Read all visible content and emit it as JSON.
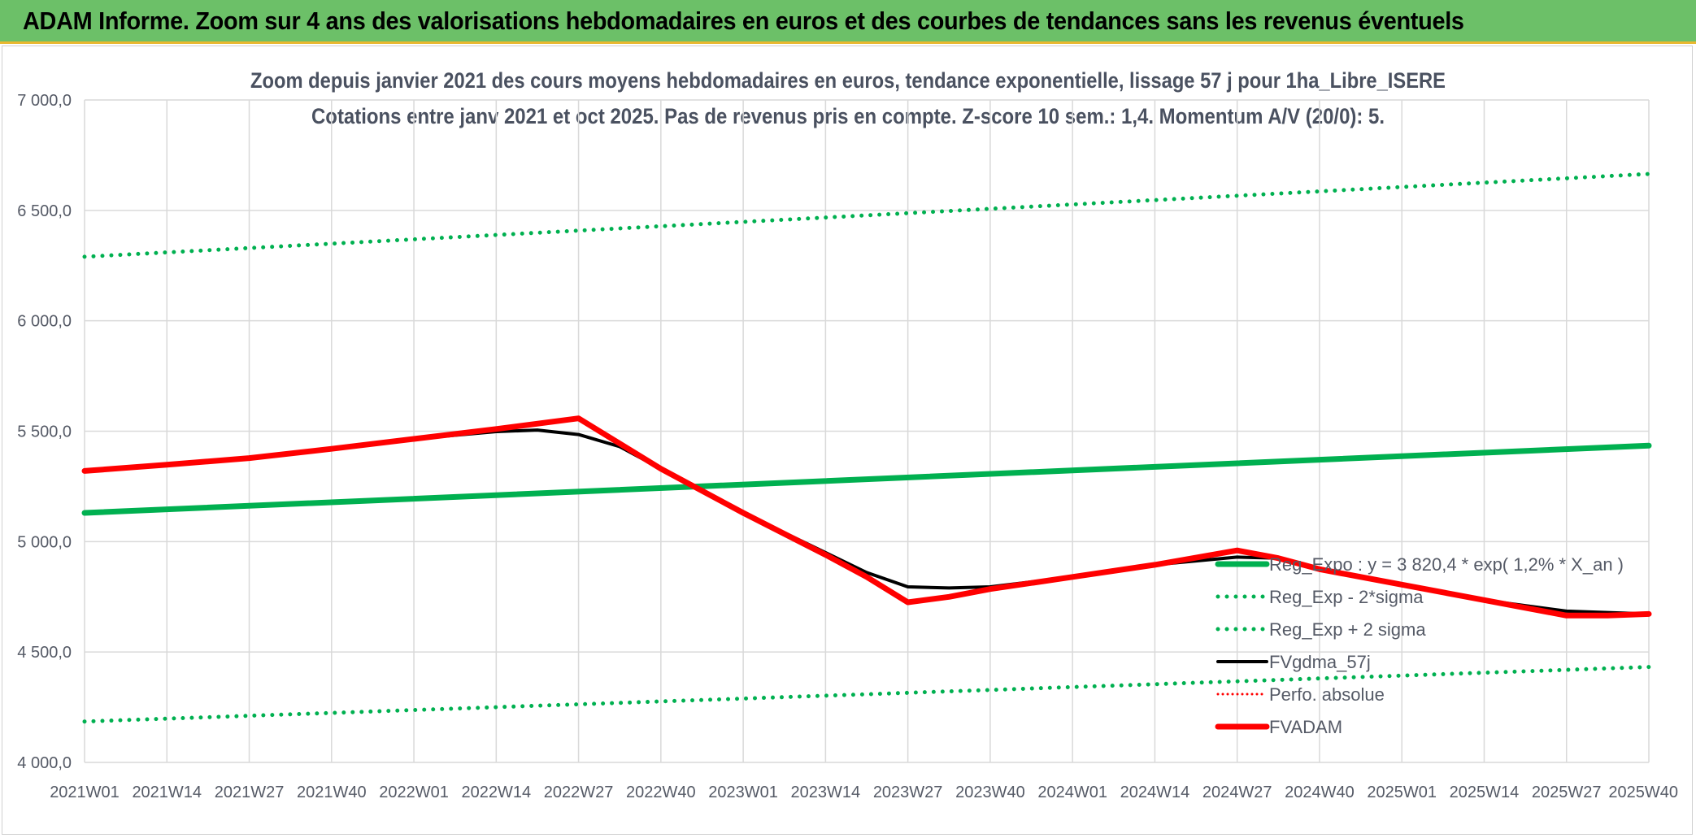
{
  "header": {
    "title": "ADAM Informe. Zoom sur 4 ans des valorisations hebdomadaires en euros et des courbes de tendances sans les revenus éventuels"
  },
  "colors": {
    "header_bg": "#6cc068",
    "header_border": "#e9b830",
    "trend_green": "#00b050",
    "black": "#000000",
    "red": "#ff0000"
  },
  "chart_data": {
    "type": "line",
    "title": "Zoom depuis janvier 2021 des cours moyens hebdomadaires en euros, tendance exponentielle, lissage 57 j pour 1ha_Libre_ISERE",
    "subtitle": "Cotations entre janv 2021 et oct 2025. Pas de revenus pris en compte. Z-score 10 sem.: 1,4. Momentum A/V (20/0): 5.",
    "ylim": [
      4000,
      7000
    ],
    "y_ticks": [
      "4 000,0",
      "4 500,0",
      "5 000,0",
      "5 500,0",
      "6 000,0",
      "6 500,0",
      "7 000,0"
    ],
    "y_tick_values": [
      4000,
      4500,
      5000,
      5500,
      6000,
      6500,
      7000
    ],
    "x_ticks": [
      "2021W01",
      "2021W14",
      "2021W27",
      "2021W40",
      "2022W01",
      "2022W14",
      "2022W27",
      "2022W40",
      "2023W01",
      "2023W14",
      "2023W27",
      "2023W40",
      "2024W01",
      "2024W14",
      "2024W27",
      "2024W40",
      "2025W01",
      "2025W14",
      "2025W27",
      "2025W40"
    ],
    "x_range": [
      0,
      19
    ],
    "grid": true,
    "legend_position": "right",
    "series": [
      {
        "name": "Reg_Expo : y = 3 820,4 * exp( 1,2% *  X_an )",
        "style": "solid-thick",
        "color": "#00b050",
        "x": [
          0,
          19
        ],
        "y": [
          5130,
          5435
        ]
      },
      {
        "name": "Reg_Exp - 2*sigma",
        "style": "dotted",
        "color": "#00b050",
        "x": [
          0,
          19
        ],
        "y": [
          4185,
          4432
        ]
      },
      {
        "name": "Reg_Exp + 2 sigma",
        "style": "dotted",
        "color": "#00b050",
        "x": [
          0,
          19
        ],
        "y": [
          6290,
          6665
        ]
      },
      {
        "name": "FVgdma_57j",
        "style": "solid",
        "color": "#000000",
        "x": [
          0,
          1,
          2,
          3,
          4,
          5,
          5.5,
          6,
          6.5,
          7,
          8,
          9,
          9.5,
          10,
          10.5,
          11,
          12,
          13,
          14,
          14.5,
          15,
          16,
          17,
          18,
          19
        ],
        "y": [
          5320,
          5348,
          5378,
          5420,
          5465,
          5498,
          5505,
          5485,
          5430,
          5330,
          5130,
          4950,
          4860,
          4795,
          4790,
          4795,
          4840,
          4895,
          4930,
          4925,
          4880,
          4805,
          4735,
          4685,
          4672
        ]
      },
      {
        "name": "Perfo. absolue",
        "style": "dotted-thin",
        "color": "#ff0000",
        "x": [],
        "y": []
      },
      {
        "name": "FVADAM",
        "style": "solid-thick",
        "color": "#ff0000",
        "x": [
          0,
          1,
          2,
          3,
          4,
          5,
          6,
          7,
          8,
          9,
          9.5,
          10,
          10.5,
          11,
          12,
          13,
          14,
          14.5,
          15,
          16,
          17,
          18,
          18.5,
          19
        ],
        "y": [
          5320,
          5348,
          5378,
          5420,
          5465,
          5510,
          5558,
          5330,
          5130,
          4940,
          4840,
          4725,
          4750,
          4785,
          4840,
          4895,
          4960,
          4925,
          4875,
          4805,
          4735,
          4665,
          4665,
          4672
        ]
      }
    ]
  }
}
